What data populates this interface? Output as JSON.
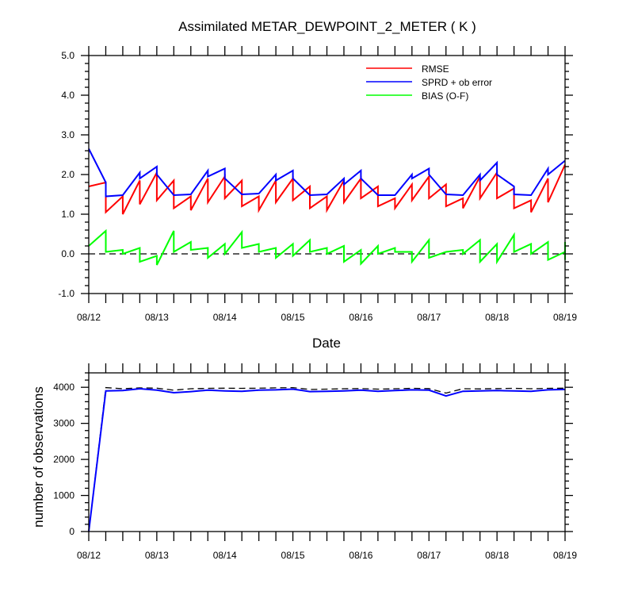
{
  "chart_data": [
    {
      "type": "line",
      "title": "Assimilated METAR_DEWPOINT_2_METER ( K )",
      "xlabel": "Date",
      "ylabel": "",
      "xlim": [
        "08/12",
        "08/19"
      ],
      "ylim": [
        -1.0,
        5.0
      ],
      "x_tick_labels": [
        "08/12",
        "08/13",
        "08/14",
        "08/15",
        "08/16",
        "08/17",
        "08/18",
        "08/19"
      ],
      "y_tick_labels": [
        "-1.0",
        "0.0",
        "1.0",
        "2.0",
        "3.0",
        "4.0",
        "5.0"
      ],
      "y_ticks": [
        -1,
        0,
        1,
        2,
        3,
        4,
        5
      ],
      "legend_position": "top-right",
      "reference_line": {
        "y": 0,
        "style": "dashed",
        "color": "#000000"
      },
      "series": [
        {
          "name": "RMSE",
          "color": "#ff0000",
          "points": [
            [
              "08/12 00:00",
              1.7
            ],
            [
              "08/12 06:00",
              1.8
            ],
            [
              "08/12 06:00",
              1.05
            ],
            [
              "08/12 12:00",
              1.45
            ],
            [
              "08/12 12:00",
              1.0
            ],
            [
              "08/12 18:00",
              1.85
            ],
            [
              "08/12 18:00",
              1.25
            ],
            [
              "08/13 00:00",
              2.05
            ],
            [
              "08/13 00:00",
              1.35
            ],
            [
              "08/13 06:00",
              1.85
            ],
            [
              "08/13 06:00",
              1.15
            ],
            [
              "08/13 12:00",
              1.45
            ],
            [
              "08/13 12:00",
              1.1
            ],
            [
              "08/13 18:00",
              1.9
            ],
            [
              "08/13 18:00",
              1.3
            ],
            [
              "08/14 00:00",
              1.95
            ],
            [
              "08/14 00:00",
              1.4
            ],
            [
              "08/14 06:00",
              1.85
            ],
            [
              "08/14 06:00",
              1.2
            ],
            [
              "08/14 12:00",
              1.45
            ],
            [
              "08/14 12:00",
              1.1
            ],
            [
              "08/14 18:00",
              1.85
            ],
            [
              "08/14 18:00",
              1.3
            ],
            [
              "08/15 00:00",
              1.9
            ],
            [
              "08/15 00:00",
              1.35
            ],
            [
              "08/15 06:00",
              1.7
            ],
            [
              "08/15 06:00",
              1.15
            ],
            [
              "08/15 12:00",
              1.45
            ],
            [
              "08/15 12:00",
              1.1
            ],
            [
              "08/15 18:00",
              1.85
            ],
            [
              "08/15 18:00",
              1.3
            ],
            [
              "08/16 00:00",
              1.9
            ],
            [
              "08/16 00:00",
              1.4
            ],
            [
              "08/16 06:00",
              1.7
            ],
            [
              "08/16 06:00",
              1.2
            ],
            [
              "08/16 12:00",
              1.4
            ],
            [
              "08/16 12:00",
              1.15
            ],
            [
              "08/16 18:00",
              1.75
            ],
            [
              "08/16 18:00",
              1.35
            ],
            [
              "08/17 00:00",
              1.95
            ],
            [
              "08/17 00:00",
              1.4
            ],
            [
              "08/17 06:00",
              1.75
            ],
            [
              "08/17 06:00",
              1.2
            ],
            [
              "08/17 12:00",
              1.4
            ],
            [
              "08/17 12:00",
              1.15
            ],
            [
              "08/17 18:00",
              1.95
            ],
            [
              "08/17 18:00",
              1.4
            ],
            [
              "08/18 00:00",
              2.05
            ],
            [
              "08/18 00:00",
              1.4
            ],
            [
              "08/18 06:00",
              1.65
            ],
            [
              "08/18 06:00",
              1.15
            ],
            [
              "08/18 12:00",
              1.35
            ],
            [
              "08/18 12:00",
              1.05
            ],
            [
              "08/18 18:00",
              1.9
            ],
            [
              "08/18 18:00",
              1.3
            ],
            [
              "08/19 00:00",
              2.25
            ]
          ]
        },
        {
          "name": "SPRD + ob error",
          "color": "#0000ff",
          "points": [
            [
              "08/12 00:00",
              2.65
            ],
            [
              "08/12 06:00",
              1.8
            ],
            [
              "08/12 06:00",
              1.45
            ],
            [
              "08/12 12:00",
              1.48
            ],
            [
              "08/12 18:00",
              2.05
            ],
            [
              "08/12 18:00",
              1.9
            ],
            [
              "08/13 00:00",
              2.2
            ],
            [
              "08/13 00:00",
              2.0
            ],
            [
              "08/13 06:00",
              1.48
            ],
            [
              "08/13 12:00",
              1.5
            ],
            [
              "08/13 18:00",
              2.1
            ],
            [
              "08/13 18:00",
              1.95
            ],
            [
              "08/14 00:00",
              2.15
            ],
            [
              "08/14 00:00",
              1.9
            ],
            [
              "08/14 06:00",
              1.5
            ],
            [
              "08/14 12:00",
              1.52
            ],
            [
              "08/14 18:00",
              2.0
            ],
            [
              "08/14 18:00",
              1.85
            ],
            [
              "08/15 00:00",
              2.1
            ],
            [
              "08/15 00:00",
              1.9
            ],
            [
              "08/15 06:00",
              1.48
            ],
            [
              "08/15 12:00",
              1.5
            ],
            [
              "08/15 18:00",
              1.9
            ],
            [
              "08/15 18:00",
              1.75
            ],
            [
              "08/16 00:00",
              2.1
            ],
            [
              "08/16 00:00",
              1.9
            ],
            [
              "08/16 06:00",
              1.48
            ],
            [
              "08/16 12:00",
              1.48
            ],
            [
              "08/16 18:00",
              2.0
            ],
            [
              "08/16 18:00",
              1.9
            ],
            [
              "08/17 00:00",
              2.15
            ],
            [
              "08/17 00:00",
              2.0
            ],
            [
              "08/17 06:00",
              1.5
            ],
            [
              "08/17 12:00",
              1.48
            ],
            [
              "08/17 18:00",
              2.0
            ],
            [
              "08/17 18:00",
              1.85
            ],
            [
              "08/18 00:00",
              2.3
            ],
            [
              "08/18 00:00",
              2.0
            ],
            [
              "08/18 06:00",
              1.7
            ],
            [
              "08/18 06:00",
              1.5
            ],
            [
              "08/18 12:00",
              1.48
            ],
            [
              "08/18 18:00",
              2.15
            ],
            [
              "08/18 18:00",
              2.0
            ],
            [
              "08/19 00:00",
              2.35
            ]
          ]
        },
        {
          "name": "BIAS (O-F)",
          "color": "#00ff00",
          "points": [
            [
              "08/12 00:00",
              0.2
            ],
            [
              "08/12 06:00",
              0.58
            ],
            [
              "08/12 06:00",
              0.05
            ],
            [
              "08/12 12:00",
              0.1
            ],
            [
              "08/12 12:00",
              0.0
            ],
            [
              "08/12 18:00",
              0.15
            ],
            [
              "08/12 18:00",
              -0.2
            ],
            [
              "08/13 00:00",
              -0.05
            ],
            [
              "08/13 00:00",
              -0.28
            ],
            [
              "08/13 06:00",
              0.58
            ],
            [
              "08/13 06:00",
              0.05
            ],
            [
              "08/13 12:00",
              0.3
            ],
            [
              "08/13 12:00",
              0.1
            ],
            [
              "08/13 18:00",
              0.15
            ],
            [
              "08/13 18:00",
              -0.1
            ],
            [
              "08/14 00:00",
              0.25
            ],
            [
              "08/14 00:00",
              0.0
            ],
            [
              "08/14 06:00",
              0.55
            ],
            [
              "08/14 06:00",
              0.15
            ],
            [
              "08/14 12:00",
              0.25
            ],
            [
              "08/14 12:00",
              0.05
            ],
            [
              "08/14 18:00",
              0.15
            ],
            [
              "08/14 18:00",
              -0.1
            ],
            [
              "08/15 00:00",
              0.25
            ],
            [
              "08/15 00:00",
              -0.05
            ],
            [
              "08/15 06:00",
              0.35
            ],
            [
              "08/15 06:00",
              0.05
            ],
            [
              "08/15 12:00",
              0.15
            ],
            [
              "08/15 12:00",
              0.0
            ],
            [
              "08/15 18:00",
              0.2
            ],
            [
              "08/15 18:00",
              -0.2
            ],
            [
              "08/16 00:00",
              0.1
            ],
            [
              "08/16 00:00",
              -0.25
            ],
            [
              "08/16 06:00",
              0.2
            ],
            [
              "08/16 06:00",
              0.0
            ],
            [
              "08/16 12:00",
              0.15
            ],
            [
              "08/16 12:00",
              0.05
            ],
            [
              "08/16 18:00",
              0.05
            ],
            [
              "08/16 18:00",
              -0.2
            ],
            [
              "08/17 00:00",
              0.35
            ],
            [
              "08/17 00:00",
              -0.1
            ],
            [
              "08/17 06:00",
              0.05
            ],
            [
              "08/17 12:00",
              0.1
            ],
            [
              "08/17 12:00",
              0.0
            ],
            [
              "08/17 18:00",
              0.35
            ],
            [
              "08/17 18:00",
              -0.2
            ],
            [
              "08/18 00:00",
              0.25
            ],
            [
              "08/18 00:00",
              -0.2
            ],
            [
              "08/18 06:00",
              0.48
            ],
            [
              "08/18 06:00",
              0.05
            ],
            [
              "08/18 12:00",
              0.25
            ],
            [
              "08/18 12:00",
              0.0
            ],
            [
              "08/18 18:00",
              0.3
            ],
            [
              "08/18 18:00",
              -0.15
            ],
            [
              "08/19 00:00",
              0.05
            ],
            [
              "08/19 00:00",
              0.3
            ],
            [
              "08/19 00:00",
              -0.15
            ]
          ]
        }
      ]
    },
    {
      "type": "line",
      "title": "",
      "xlabel": "",
      "ylabel": "number of observations",
      "xlim": [
        "08/12",
        "08/19"
      ],
      "ylim": [
        0,
        4400
      ],
      "x_tick_labels": [
        "08/12",
        "08/13",
        "08/14",
        "08/15",
        "08/16",
        "08/17",
        "08/18",
        "08/19"
      ],
      "y_tick_labels": [
        "0",
        "1000",
        "2000",
        "3000",
        "4000"
      ],
      "y_ticks": [
        0,
        1000,
        2000,
        3000,
        4000
      ],
      "series": [
        {
          "style": "dashed",
          "color": "#000000",
          "points": [
            [
              "08/12 00:00",
              0
            ],
            [
              "08/12 06:00",
              3990
            ],
            [
              "08/12 12:00",
              3960
            ],
            [
              "08/12 18:00",
              3985
            ],
            [
              "08/13 00:00",
              3975
            ],
            [
              "08/13 06:00",
              3920
            ],
            [
              "08/13 12:00",
              3960
            ],
            [
              "08/13 18:00",
              3970
            ],
            [
              "08/14 00:00",
              3975
            ],
            [
              "08/14 06:00",
              3970
            ],
            [
              "08/14 12:00",
              3975
            ],
            [
              "08/14 18:00",
              3985
            ],
            [
              "08/15 00:00",
              3990
            ],
            [
              "08/15 06:00",
              3940
            ],
            [
              "08/15 12:00",
              3950
            ],
            [
              "08/15 18:00",
              3960
            ],
            [
              "08/16 00:00",
              3965
            ],
            [
              "08/16 06:00",
              3950
            ],
            [
              "08/16 12:00",
              3960
            ],
            [
              "08/16 18:00",
              3970
            ],
            [
              "08/17 00:00",
              3965
            ],
            [
              "08/17 06:00",
              3840
            ],
            [
              "08/17 12:00",
              3960
            ],
            [
              "08/17 18:00",
              3955
            ],
            [
              "08/18 00:00",
              3965
            ],
            [
              "08/18 06:00",
              3970
            ],
            [
              "08/18 12:00",
              3960
            ],
            [
              "08/18 18:00",
              3970
            ],
            [
              "08/19 00:00",
              3975
            ]
          ]
        },
        {
          "color": "#0000ff",
          "points": [
            [
              "08/12 00:00",
              0
            ],
            [
              "08/12 06:00",
              3900
            ],
            [
              "08/12 12:00",
              3910
            ],
            [
              "08/12 18:00",
              3960
            ],
            [
              "08/13 00:00",
              3920
            ],
            [
              "08/13 06:00",
              3850
            ],
            [
              "08/13 12:00",
              3880
            ],
            [
              "08/13 18:00",
              3920
            ],
            [
              "08/14 00:00",
              3900
            ],
            [
              "08/14 06:00",
              3890
            ],
            [
              "08/14 12:00",
              3920
            ],
            [
              "08/14 18:00",
              3930
            ],
            [
              "08/15 00:00",
              3950
            ],
            [
              "08/15 06:00",
              3880
            ],
            [
              "08/15 12:00",
              3890
            ],
            [
              "08/15 18:00",
              3900
            ],
            [
              "08/16 00:00",
              3920
            ],
            [
              "08/16 06:00",
              3890
            ],
            [
              "08/16 12:00",
              3910
            ],
            [
              "08/16 18:00",
              3930
            ],
            [
              "08/17 00:00",
              3920
            ],
            [
              "08/17 06:00",
              3760
            ],
            [
              "08/17 12:00",
              3890
            ],
            [
              "08/17 18:00",
              3900
            ],
            [
              "08/18 00:00",
              3910
            ],
            [
              "08/18 06:00",
              3900
            ],
            [
              "08/18 12:00",
              3890
            ],
            [
              "08/18 18:00",
              3930
            ],
            [
              "08/19 00:00",
              3940
            ]
          ]
        }
      ]
    }
  ]
}
